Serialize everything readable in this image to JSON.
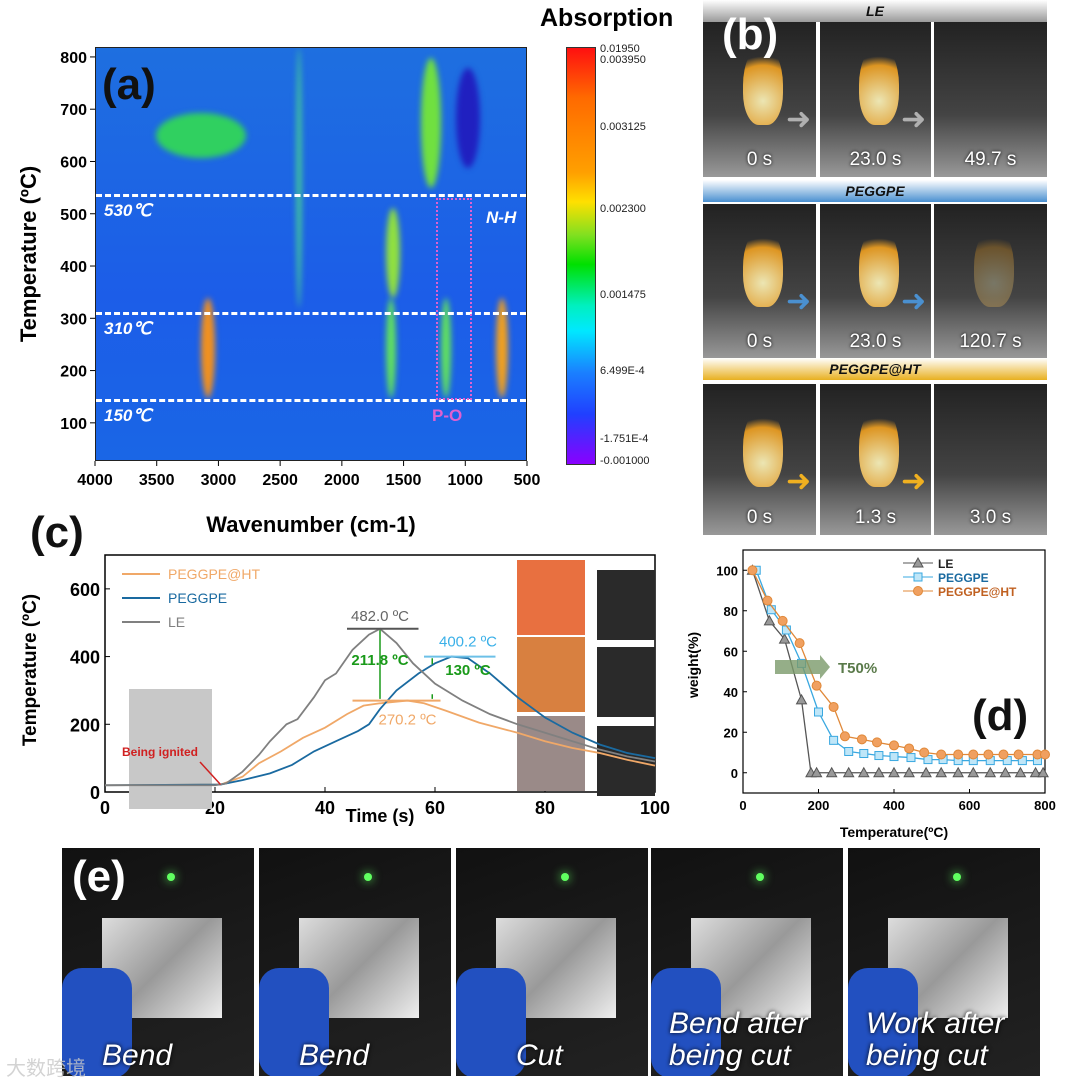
{
  "panels": {
    "a": "(a)",
    "b": "(b)",
    "c": "(c)",
    "d": "(d)",
    "e": "(e)"
  },
  "panel_a": {
    "colorbar_title": "Absorption",
    "colorbar_ticks": [
      "0.01950",
      "0.003950",
      "0.003125",
      "0.002300",
      "0.001475",
      "6.499E-4",
      "-1.751E-4",
      "-0.001000"
    ],
    "dashed_lines": [
      "530℃",
      "310℃",
      "150℃"
    ],
    "annotations": {
      "nh": "N-H",
      "po": "P-O"
    },
    "colors": {
      "annot_nh": "#ffffff",
      "annot_po": "#e060d0"
    }
  },
  "panel_b": {
    "rows": [
      {
        "label": "LE",
        "times": [
          "0 s",
          "23.0 s",
          "49.7 s"
        ],
        "bar_color": "#9a9a9a",
        "arrow_color": "#b0b0b0"
      },
      {
        "label": "PEGGPE",
        "times": [
          "0 s",
          "23.0 s",
          "120.7 s"
        ],
        "bar_color": "#4a90d0",
        "arrow_color": "#4a90d0"
      },
      {
        "label": "PEGGPE@HT",
        "times": [
          "0 s",
          "1.3 s",
          "3.0 s"
        ],
        "bar_color": "#e8b020",
        "arrow_color": "#f0b020"
      }
    ]
  },
  "panel_e": {
    "labels": [
      "Bend",
      "Bend",
      "Cut",
      "Bend after being cut",
      "Work after being cut"
    ]
  },
  "watermark": "大数跨境",
  "chart_data": [
    {
      "type": "heatmap",
      "title": "",
      "xlabel": "Wavenumber  (cm-1)",
      "ylabel": "Temperature (ºC)",
      "xlim": [
        4000,
        500
      ],
      "ylim": [
        27,
        819
      ],
      "xticks": [
        4000,
        3500,
        3000,
        2500,
        2000,
        1500,
        1000,
        500
      ],
      "yticks": [
        100,
        200,
        300,
        400,
        500,
        600,
        700,
        800
      ],
      "colorbar_range": [
        -0.001,
        0.0195
      ],
      "marked_temperatures": [
        530,
        310,
        150
      ]
    },
    {
      "type": "line",
      "xlabel": "Time (s)",
      "ylabel": "Temperature (ºC)",
      "xlim": [
        0,
        100
      ],
      "ylim": [
        0,
        700
      ],
      "xticks": [
        0,
        20,
        40,
        60,
        80,
        100
      ],
      "yticks": [
        0,
        200,
        400,
        600
      ],
      "legend": "top-left",
      "series": [
        {
          "name": "PEGGPE@HT",
          "color": "#f0a868",
          "x": [
            0,
            21,
            25,
            28,
            32,
            36,
            40,
            44,
            47,
            50,
            55,
            58,
            62,
            68,
            75,
            80,
            85,
            90,
            95,
            100
          ],
          "y": [
            20,
            22,
            45,
            85,
            120,
            160,
            190,
            230,
            255,
            262,
            270,
            262,
            240,
            205,
            175,
            150,
            130,
            115,
            95,
            78
          ]
        },
        {
          "name": "PEGGPE",
          "color": "#1a6aa0",
          "x": [
            0,
            21,
            25,
            30,
            34,
            38,
            42,
            46,
            48,
            50,
            53,
            57,
            60,
            63,
            66,
            70,
            75,
            80,
            85,
            90,
            95,
            100
          ],
          "y": [
            20,
            22,
            35,
            55,
            80,
            120,
            150,
            180,
            200,
            245,
            300,
            350,
            380,
            400,
            395,
            350,
            280,
            220,
            175,
            140,
            115,
            100
          ]
        },
        {
          "name": "LE",
          "color": "#808080",
          "x": [
            0,
            20,
            22,
            25,
            28,
            30,
            33,
            35,
            38,
            40,
            42,
            45,
            48,
            50,
            53,
            56,
            60,
            65,
            70,
            75,
            80,
            85,
            90,
            95,
            100
          ],
          "y": [
            20,
            20,
            25,
            60,
            110,
            150,
            200,
            215,
            280,
            330,
            350,
            420,
            465,
            482,
            440,
            380,
            320,
            270,
            230,
            200,
            175,
            150,
            125,
            105,
            90
          ]
        }
      ],
      "annotations": {
        "le_peak": "482.0 ºC",
        "peggpe_peak": "400.2 ºC",
        "ht_peak": "270.2 ºC",
        "diff1": "211.8 ºC",
        "diff2": "130 ºC",
        "ignite": "Being ignited"
      }
    },
    {
      "type": "line",
      "xlabel": "Temperature(ºC)",
      "ylabel": "weight(%)",
      "xlim": [
        0,
        800
      ],
      "ylim": [
        -10,
        110
      ],
      "xticks": [
        0,
        200,
        400,
        600,
        800
      ],
      "yticks": [
        0,
        20,
        40,
        60,
        80,
        100
      ],
      "legend": "top-right",
      "annotation": "T50%",
      "series": [
        {
          "name": "LE",
          "color": "#555555",
          "marker": "triangle",
          "x": [
            25,
            70,
            110,
            155,
            180,
            195,
            235,
            280,
            320,
            360,
            400,
            440,
            485,
            525,
            570,
            610,
            655,
            695,
            735,
            775,
            795
          ],
          "y": [
            100,
            75,
            66,
            36,
            0,
            0,
            0,
            0,
            0,
            0,
            0,
            0,
            0,
            0,
            0,
            0,
            0,
            0,
            0,
            0,
            0
          ]
        },
        {
          "name": "PEGGPE",
          "color": "#3aa8e0",
          "marker": "square",
          "x": [
            35,
            75,
            115,
            155,
            200,
            240,
            280,
            320,
            360,
            400,
            445,
            490,
            530,
            570,
            610,
            655,
            700,
            740,
            780
          ],
          "y": [
            100,
            80.5,
            70.5,
            54,
            30,
            16,
            10.5,
            9.5,
            8.5,
            8,
            7.5,
            6.5,
            6.5,
            6,
            6,
            6,
            6,
            6,
            6
          ]
        },
        {
          "name": "PEGGPE@HT",
          "color": "#e08838",
          "marker": "circle",
          "x": [
            25,
            65,
            105,
            150,
            195,
            240,
            270,
            315,
            355,
            400,
            440,
            480,
            525,
            570,
            610,
            650,
            690,
            730,
            780,
            800
          ],
          "y": [
            100,
            85,
            75,
            64,
            43,
            32.5,
            18,
            16.5,
            15,
            13.5,
            12,
            10,
            9,
            9,
            9,
            9,
            9,
            9,
            9,
            9
          ]
        }
      ]
    }
  ]
}
